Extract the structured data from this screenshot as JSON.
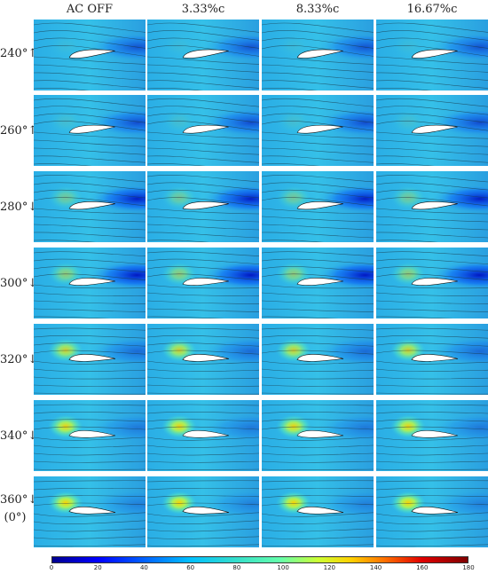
{
  "columns": [
    "AC OFF",
    "3.33%c",
    "8.33%c",
    "16.67%c"
  ],
  "rows": [
    {
      "label": "240°↑",
      "sublabel": ""
    },
    {
      "label": "260°↑",
      "sublabel": ""
    },
    {
      "label": "280°↓",
      "sublabel": ""
    },
    {
      "label": "300°↓",
      "sublabel": ""
    },
    {
      "label": "320°↓",
      "sublabel": ""
    },
    {
      "label": "340°↓",
      "sublabel": ""
    },
    {
      "label": "360°↓",
      "sublabel": "(0°)"
    }
  ],
  "colorbar": {
    "ticks": [
      "0",
      "20",
      "40",
      "60",
      "80",
      "100",
      "120",
      "140",
      "160",
      "180"
    ],
    "min": 0,
    "max": 180
  }
}
